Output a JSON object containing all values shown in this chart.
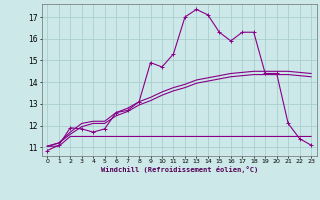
{
  "xlabel": "Windchill (Refroidissement éolien,°C)",
  "background_color": "#cce8e8",
  "grid_color": "#aacece",
  "line_color": "#880088",
  "xlim": [
    -0.5,
    23.5
  ],
  "ylim": [
    10.6,
    17.6
  ],
  "yticks": [
    11,
    12,
    13,
    14,
    15,
    16,
    17
  ],
  "xticks": [
    0,
    1,
    2,
    3,
    4,
    5,
    6,
    7,
    8,
    9,
    10,
    11,
    12,
    13,
    14,
    15,
    16,
    17,
    18,
    19,
    20,
    21,
    22,
    23
  ],
  "curve1_x": [
    0,
    1,
    2,
    3,
    4,
    5,
    6,
    7,
    8,
    9,
    10,
    11,
    12,
    13,
    14,
    15,
    16,
    17,
    18,
    19,
    20,
    21,
    22,
    23
  ],
  "curve1_y": [
    10.85,
    11.1,
    11.9,
    11.85,
    11.7,
    11.85,
    12.6,
    12.7,
    13.1,
    14.9,
    14.7,
    15.3,
    17.0,
    17.35,
    17.1,
    16.3,
    15.9,
    16.3,
    16.3,
    14.4,
    14.4,
    12.1,
    11.4,
    11.1
  ],
  "curve2_x": [
    0,
    1,
    2,
    3,
    4,
    5,
    6,
    7,
    8,
    9,
    10,
    11,
    12,
    13,
    14,
    15,
    16,
    17,
    18,
    19,
    20,
    21,
    22,
    23
  ],
  "curve2_y": [
    11.05,
    11.05,
    11.5,
    11.5,
    11.5,
    11.5,
    11.5,
    11.5,
    11.5,
    11.5,
    11.5,
    11.5,
    11.5,
    11.5,
    11.5,
    11.5,
    11.5,
    11.5,
    11.5,
    11.5,
    11.5,
    11.5,
    11.5,
    11.5
  ],
  "curve3_x": [
    0,
    1,
    2,
    3,
    4,
    5,
    6,
    7,
    8,
    9,
    10,
    11,
    12,
    13,
    14,
    15,
    16,
    17,
    18,
    19,
    20,
    21,
    22,
    23
  ],
  "curve3_y": [
    11.05,
    11.2,
    11.6,
    11.95,
    12.1,
    12.1,
    12.45,
    12.65,
    12.95,
    13.15,
    13.4,
    13.6,
    13.75,
    13.95,
    14.05,
    14.15,
    14.25,
    14.3,
    14.35,
    14.35,
    14.35,
    14.35,
    14.3,
    14.25
  ],
  "curve4_x": [
    0,
    1,
    2,
    3,
    4,
    5,
    6,
    7,
    8,
    9,
    10,
    11,
    12,
    13,
    14,
    15,
    16,
    17,
    18,
    19,
    20,
    21,
    22,
    23
  ],
  "curve4_y": [
    11.05,
    11.2,
    11.7,
    12.1,
    12.2,
    12.2,
    12.6,
    12.8,
    13.1,
    13.3,
    13.55,
    13.75,
    13.9,
    14.1,
    14.2,
    14.3,
    14.4,
    14.45,
    14.5,
    14.5,
    14.5,
    14.5,
    14.45,
    14.4
  ]
}
